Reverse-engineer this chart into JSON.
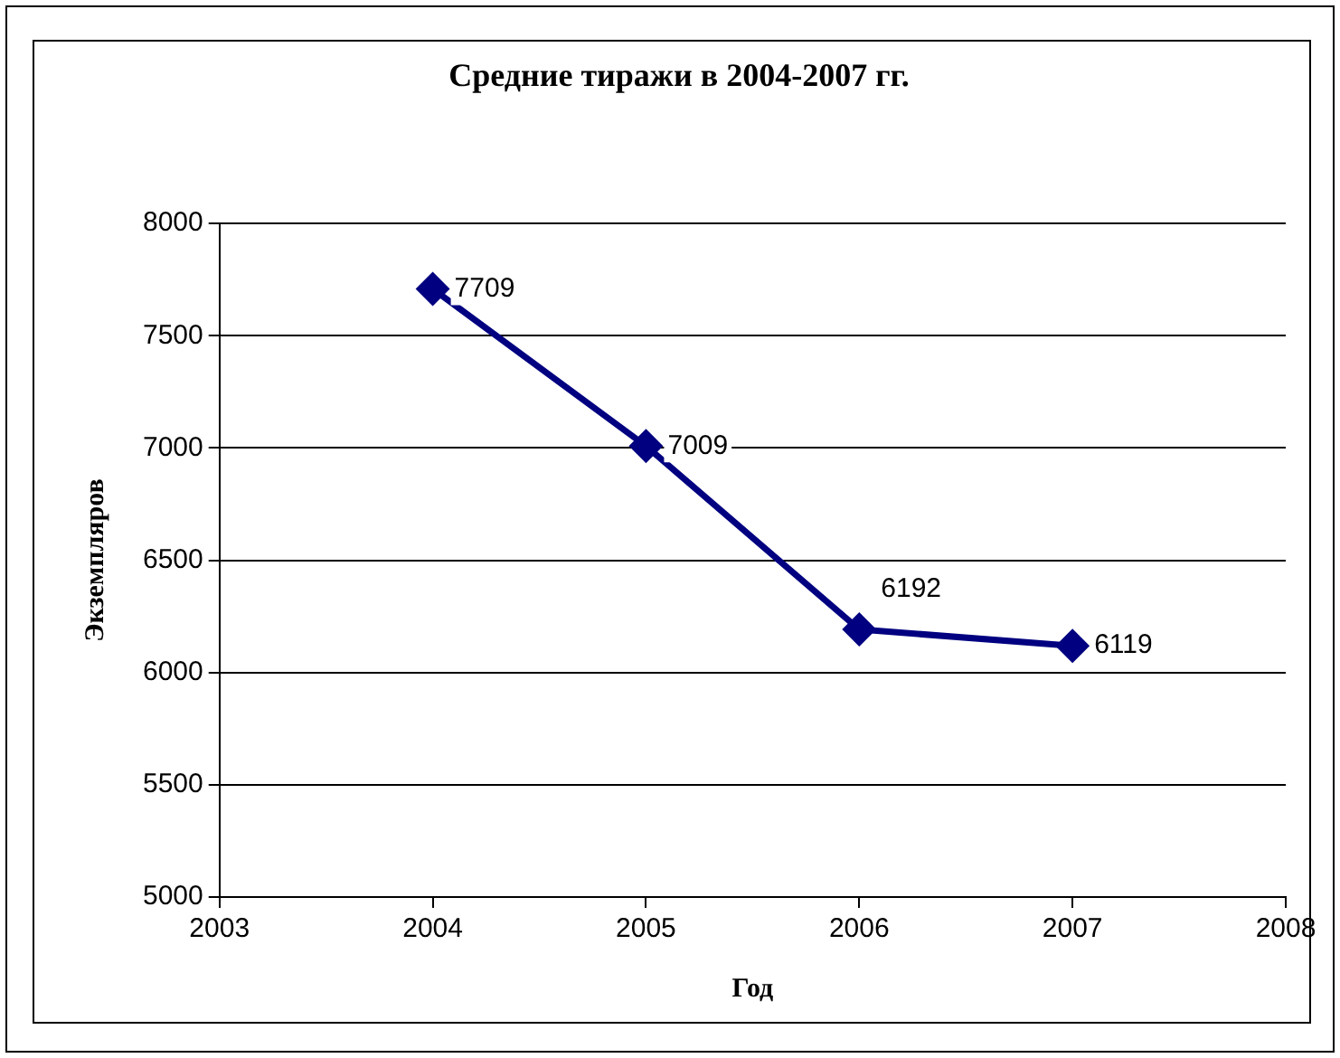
{
  "chart_data": {
    "type": "line",
    "title": "Средние тиражи в 2004-2007 гг.",
    "xlabel": "Год",
    "ylabel": "Экземпляров",
    "x": [
      2004,
      2005,
      2006,
      2007
    ],
    "series": [
      {
        "color": "#000080",
        "values": [
          7709,
          7009,
          6192,
          6119
        ]
      }
    ],
    "xlim": [
      2003,
      2008
    ],
    "xticks": [
      2003,
      2004,
      2005,
      2006,
      2007,
      2008
    ],
    "ylim": [
      5000,
      8000
    ],
    "yticks": [
      5000,
      5500,
      6000,
      6500,
      7000,
      7500,
      8000
    ],
    "grid": "y",
    "legend": false,
    "marker": "diamond",
    "line_style": "solid",
    "data_labels": true
  }
}
